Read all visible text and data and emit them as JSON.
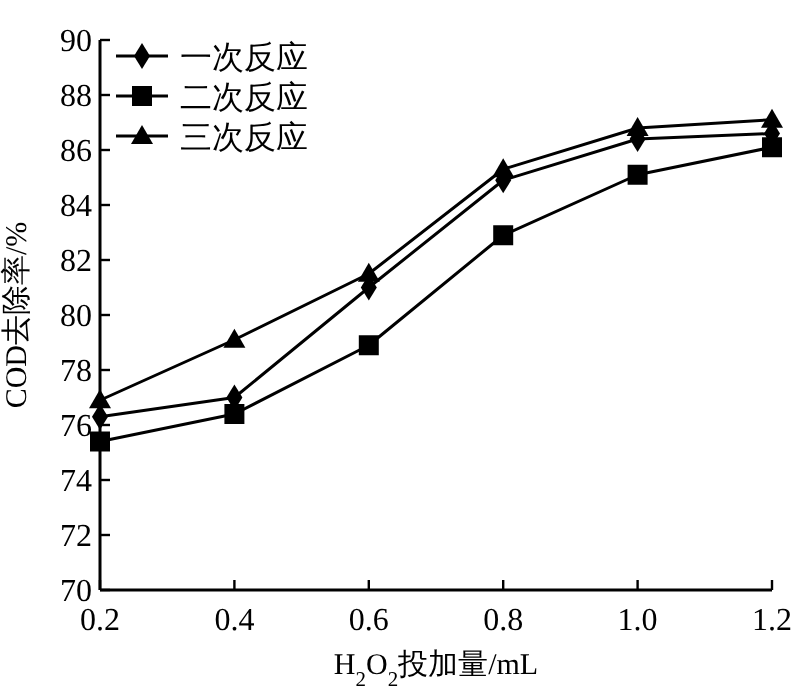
{
  "chart_data": {
    "type": "line",
    "xlabel": "H$_{2}$O$_{2}$投加量/mL",
    "ylabel": "COD去除率/%",
    "x": [
      0.2,
      0.4,
      0.6,
      0.8,
      1.0,
      1.2
    ],
    "series": [
      {
        "name": "一次反应",
        "color": "#000000",
        "marker": "diamond",
        "values": [
          76.3,
          77.0,
          81.0,
          84.9,
          86.4,
          86.6
        ]
      },
      {
        "name": "二次反应",
        "color": "#000000",
        "marker": "square",
        "values": [
          75.4,
          76.4,
          78.9,
          82.9,
          85.1,
          86.1
        ]
      },
      {
        "name": "三次反应",
        "color": "#000000",
        "marker": "triangle",
        "values": [
          76.9,
          79.1,
          81.5,
          85.3,
          86.8,
          87.1
        ]
      }
    ],
    "xlim": [
      0.2,
      1.2
    ],
    "xticks": [
      {
        "value": 0.2,
        "label": "0.2"
      },
      {
        "value": 0.4,
        "label": "0.4"
      },
      {
        "value": 0.6,
        "label": "0.6"
      },
      {
        "value": 0.8,
        "label": "0.8"
      },
      {
        "value": 1.0,
        "label": "1.0"
      },
      {
        "value": 1.2,
        "label": "1.2"
      }
    ],
    "ylim": [
      70,
      90
    ],
    "yticks": [
      70,
      72,
      74,
      76,
      78,
      80,
      82,
      84,
      86,
      88,
      90
    ],
    "grid": false,
    "legend": "top left",
    "line_style": "solid"
  }
}
